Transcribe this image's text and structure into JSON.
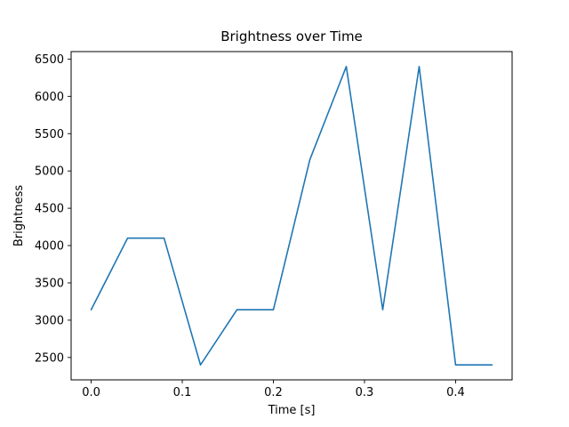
{
  "chart_data": {
    "type": "line",
    "title": "Brightness over Time",
    "xlabel": "Time [s]",
    "ylabel": "Brightness",
    "x": [
      0.0,
      0.04,
      0.08,
      0.12,
      0.16,
      0.2,
      0.24,
      0.28,
      0.32,
      0.36,
      0.4,
      0.44
    ],
    "y": [
      3140,
      4100,
      4100,
      2400,
      3140,
      3140,
      5150,
      6400,
      3140,
      6400,
      2400,
      2400
    ],
    "xlim": [
      -0.022,
      0.462
    ],
    "ylim": [
      2200,
      6600
    ],
    "xticks": [
      0.0,
      0.1,
      0.2,
      0.3,
      0.4
    ],
    "xtick_labels": [
      "0.0",
      "0.1",
      "0.2",
      "0.3",
      "0.4"
    ],
    "yticks": [
      2500,
      3000,
      3500,
      4000,
      4500,
      5000,
      5500,
      6000,
      6500
    ],
    "ytick_labels": [
      "2500",
      "3000",
      "3500",
      "4000",
      "4500",
      "5000",
      "5500",
      "6000",
      "6500"
    ],
    "line_color": "#1f77b4",
    "spine_color": "#000000",
    "background_color": "#ffffff",
    "grid": false,
    "legend_position": "none"
  }
}
